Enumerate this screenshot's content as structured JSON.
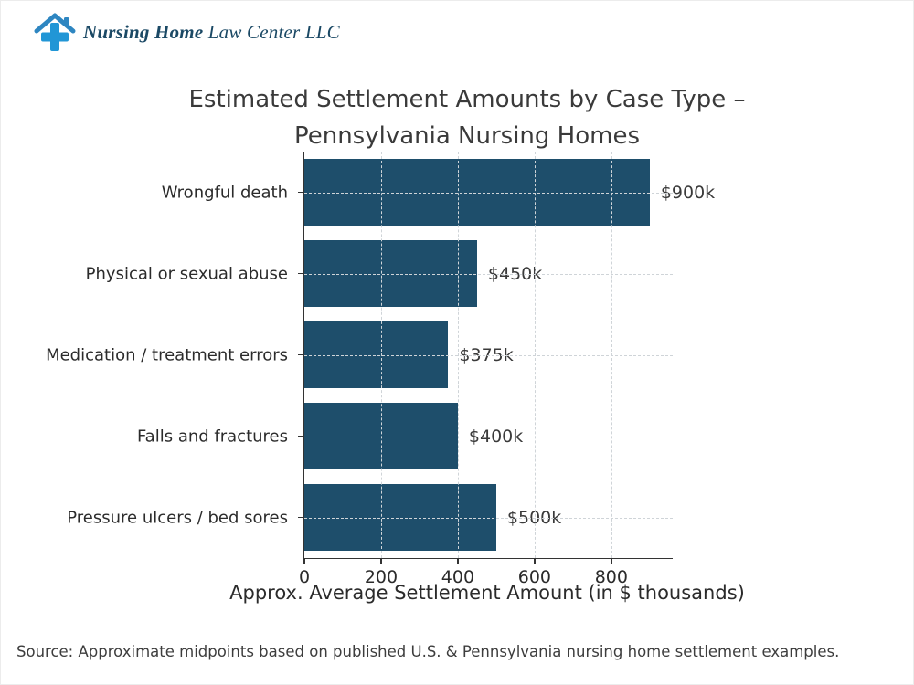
{
  "logo": {
    "name_bold": "Nursing Home",
    "name_rest": " Law Center LLC",
    "icon": "house-with-medical-cross-icon",
    "icon_cross_color": "#2196d6",
    "icon_roof_color": "#2e86c1",
    "text_color": "#1b4965"
  },
  "source_note": "Source: Approximate midpoints based on published U.S. & Pennsylvania nursing home settlement examples.",
  "colors": {
    "bar": "#1e4e6b",
    "axis": "#333333",
    "grid": "#cfd4d8",
    "title_text": "#3a3a3a",
    "tick_text": "#2b2b2b"
  },
  "chart_data": {
    "type": "bar",
    "orientation": "horizontal",
    "title": "Estimated Settlement Amounts by Case Type – Pennsylvania Nursing Homes",
    "title_lines": [
      "Estimated Settlement Amounts by Case Type –",
      "Pennsylvania Nursing Homes"
    ],
    "categories": [
      "Wrongful death",
      "Physical or sexual abuse",
      "Medication / treatment errors",
      "Falls and fractures",
      "Pressure ulcers / bed sores"
    ],
    "values": [
      900,
      450,
      375,
      400,
      500
    ],
    "value_labels": [
      "$900k",
      "$450k",
      "$375k",
      "$400k",
      "$500k"
    ],
    "xlabel": "Approx. Average Settlement Amount (in $ thousands)",
    "ylabel": "",
    "xlim": [
      0,
      960
    ],
    "xticks": [
      0,
      200,
      400,
      600,
      800
    ],
    "grid": true,
    "grid_style": "dashed",
    "legend": "none",
    "bar_color": "#1e4e6b",
    "units": "$ thousands"
  }
}
